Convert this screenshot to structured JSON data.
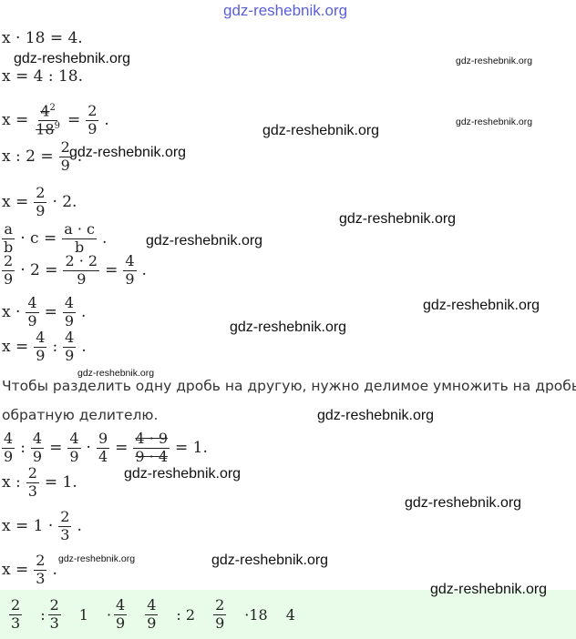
{
  "document": {
    "header": "gdz-reshebnik.org",
    "lines": [
      {
        "tokens": [
          "x · 18 = 4."
        ]
      },
      {
        "tokens": [
          "x = 4 : 18."
        ]
      },
      {
        "tokens": [
          "x =",
          {
            "num": "4",
            "num_note": "2",
            "den": "18",
            "den_note": "9",
            "cancel": true
          },
          "=",
          {
            "num": "2",
            "den": "9"
          },
          "."
        ]
      },
      {
        "tokens": [
          "x : 2 =",
          {
            "num": "2",
            "den": "9"
          },
          "."
        ]
      },
      {
        "tokens": [
          "x =",
          {
            "num": "2",
            "den": "9"
          },
          "· 2."
        ]
      },
      {
        "tokens": [
          {
            "num": "a",
            "den": "b"
          },
          "· c =",
          {
            "num": "a · c",
            "den": "b"
          },
          "."
        ]
      },
      {
        "tokens": [
          {
            "num": "2",
            "den": "9"
          },
          "· 2 =",
          {
            "num": "2 · 2",
            "den": "9"
          },
          "=",
          {
            "num": "4",
            "den": "9"
          },
          "."
        ]
      },
      {
        "tokens": [
          "x ·",
          {
            "num": "4",
            "den": "9"
          },
          "=",
          {
            "num": "4",
            "den": "9"
          },
          "."
        ]
      },
      {
        "tokens": [
          "x =",
          {
            "num": "4",
            "den": "9"
          },
          ":",
          {
            "num": "4",
            "den": "9"
          },
          "."
        ]
      },
      {
        "text": "Чтобы разделить одну дробь на другую, нужно делимое умножить на дробь,"
      },
      {
        "text": "обратную делителю."
      },
      {
        "tokens": [
          {
            "num": "4",
            "den": "9"
          },
          ":",
          {
            "num": "4",
            "den": "9"
          },
          "=",
          {
            "num": "4",
            "den": "9"
          },
          "·",
          {
            "num": "9",
            "den": "4"
          },
          "=",
          {
            "num": "4 · 9",
            "den": "9 · 4",
            "cancel": true
          },
          "= 1."
        ]
      },
      {
        "tokens": [
          "x :",
          {
            "num": "2",
            "den": "3"
          },
          "= 1."
        ]
      },
      {
        "tokens": [
          "x = 1 ·",
          {
            "num": "2",
            "den": "3"
          },
          "."
        ]
      },
      {
        "tokens": [
          "x =",
          {
            "num": "2",
            "den": "3"
          },
          "."
        ]
      }
    ],
    "table": [
      {
        "tokens": [
          {
            "num": "2",
            "den": "3"
          }
        ]
      },
      {
        "tokens": [
          ":",
          {
            "num": "2",
            "den": "3"
          }
        ]
      },
      {
        "tokens": [
          "1"
        ]
      },
      {
        "tokens": [
          "·",
          {
            "num": "4",
            "den": "9"
          }
        ]
      },
      {
        "tokens": [
          {
            "num": "4",
            "den": "9"
          }
        ]
      },
      {
        "tokens": [
          ": 2"
        ]
      },
      {
        "tokens": [
          {
            "num": "2",
            "den": "9"
          }
        ]
      },
      {
        "tokens": [
          "·18"
        ]
      },
      {
        "tokens": [
          "4"
        ]
      }
    ],
    "watermarks": [
      "gdz-reshebnik.org",
      "gdz-reshebnik.org",
      "gdz-reshebnik.org",
      "gdz-reshebnik.org",
      "gdz-reshebnik.org",
      "gdz-reshebnik.org",
      "gdz-reshebnik.org",
      "gdz-reshebnik.org",
      "gdz-reshebnik.org",
      "gdz-reshebnik.org",
      "gdz-reshebnik.org",
      "gdz-reshebnik.org",
      "gdz-reshebnik.org",
      "gdz-reshebnik.org",
      "gdz-reshebnik.org",
      "gdz-reshebnik.org"
    ]
  }
}
